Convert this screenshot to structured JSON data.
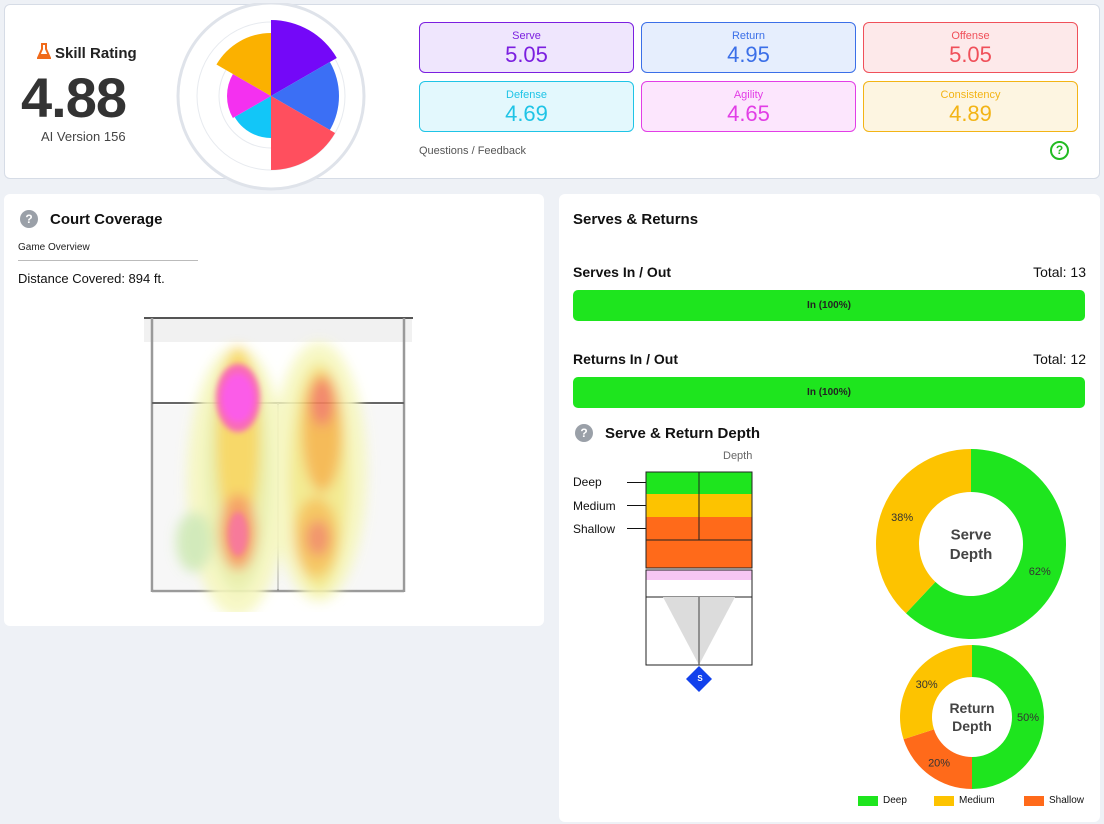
{
  "skill": {
    "title": "Skill Rating",
    "value": "4.88",
    "version": "AI Version 156",
    "icon": "flask-icon"
  },
  "metrics": [
    {
      "label": "Serve",
      "value": "5.05",
      "color": "#7b1fe0",
      "bg": "#efe6fd",
      "border": "#7b1fe0"
    },
    {
      "label": "Return",
      "value": "4.95",
      "color": "#3b6fe8",
      "bg": "#e6eefd",
      "border": "#3b6fe8"
    },
    {
      "label": "Offense",
      "value": "5.05",
      "color": "#f0505a",
      "bg": "#fde9ea",
      "border": "#f0505a"
    },
    {
      "label": "Defense",
      "value": "4.69",
      "color": "#1fc4e6",
      "bg": "#e3f8fd",
      "border": "#1fc4e6"
    },
    {
      "label": "Agility",
      "value": "4.65",
      "color": "#e23ee6",
      "bg": "#fce6fd",
      "border": "#e23ee6"
    },
    {
      "label": "Consistency",
      "value": "4.89",
      "color": "#f3b415",
      "bg": "#fdf5e1",
      "border": "#f3b415"
    }
  ],
  "feedback_link": "Questions / Feedback",
  "help_glyph": "?",
  "court": {
    "title": "Court Coverage",
    "subtitle": "Game Overview",
    "distance": "Distance Covered: 894 ft."
  },
  "serves_returns": {
    "title": "Serves & Returns",
    "serves": {
      "label": "Serves In / Out",
      "total": "Total: 13",
      "bar": "In (100%)",
      "in_fraction": 1.0
    },
    "returns": {
      "label": "Returns In / Out",
      "total": "Total: 12",
      "bar": "In (100%)",
      "in_fraction": 1.0
    }
  },
  "depth": {
    "title": "Serve & Return Depth",
    "column_label": "Depth",
    "levels": [
      "Deep",
      "Medium",
      "Shallow"
    ],
    "server_marker": "S",
    "legend": [
      "Deep",
      "Medium",
      "Shallow"
    ]
  },
  "chart_data": [
    {
      "type": "pie",
      "title": "Serve Depth",
      "categories": [
        "Deep",
        "Medium"
      ],
      "values": [
        62,
        38
      ],
      "labels": [
        "62%",
        "38%"
      ],
      "colors": [
        "#1ee51e",
        "#fdc300"
      ]
    },
    {
      "type": "pie",
      "title": "Return Depth",
      "categories": [
        "Deep",
        "Shallow",
        "Medium"
      ],
      "values": [
        50,
        20,
        30
      ],
      "labels": [
        "50%",
        "20%",
        "30%"
      ],
      "colors": [
        "#1ee51e",
        "#ff6a1a",
        "#fdc300"
      ]
    }
  ],
  "colors": {
    "deep": "#1ee51e",
    "medium": "#fdc300",
    "shallow": "#ff6a1a",
    "accent_green": "#22bb22"
  }
}
